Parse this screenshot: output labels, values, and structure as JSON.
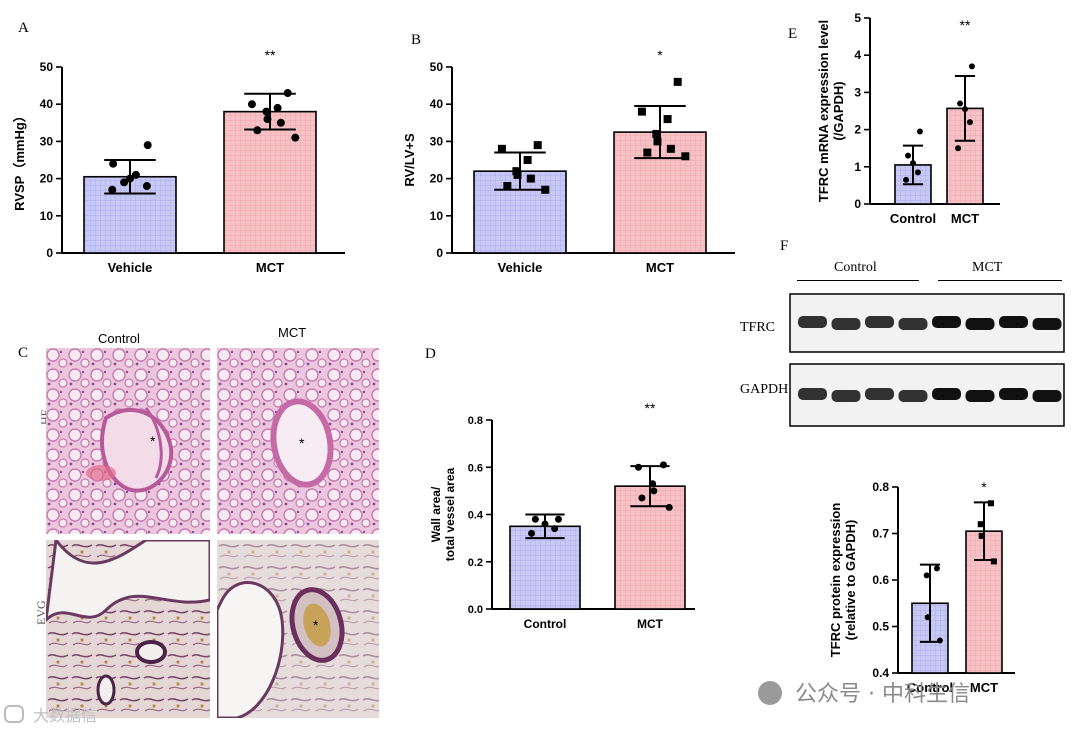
{
  "panels": {
    "A": "A",
    "B": "B",
    "C": "C",
    "D": "D",
    "E": "E",
    "F": "F"
  },
  "colors": {
    "control": "#c7c9f4",
    "mct": "#f6c2c6",
    "control_stroke": "#000000",
    "mct_stroke": "#000000"
  },
  "chart_data": [
    {
      "id": "A",
      "type": "bar",
      "categories": [
        "Vehicle",
        "MCT"
      ],
      "values": [
        20.5,
        38
      ],
      "errors": [
        4.5,
        4.8
      ],
      "points": [
        [
          29,
          24,
          21,
          20,
          19,
          18,
          17
        ],
        [
          43,
          40,
          39,
          38,
          36,
          35,
          33,
          31
        ]
      ],
      "significance": [
        "",
        "**"
      ],
      "ylabel": "RVSP（mmHg）",
      "ylim": [
        0,
        50
      ],
      "yticks": [
        0,
        10,
        20,
        30,
        40,
        50
      ],
      "title": "",
      "xlabel": ""
    },
    {
      "id": "B",
      "type": "bar",
      "categories": [
        "Vehicle",
        "MCT"
      ],
      "values": [
        22,
        32.5
      ],
      "errors": [
        5,
        7
      ],
      "points": [
        [
          29,
          28,
          25,
          22,
          21,
          20,
          18,
          17
        ],
        [
          46,
          38,
          36,
          32,
          30,
          28,
          27,
          26
        ]
      ],
      "significance": [
        "",
        "*"
      ],
      "ylabel": "RV/LV+S",
      "ylim": [
        0,
        50
      ],
      "yticks": [
        0,
        10,
        20,
        30,
        40,
        50
      ],
      "title": "",
      "xlabel": ""
    },
    {
      "id": "D",
      "type": "bar",
      "categories": [
        "Control",
        "MCT"
      ],
      "values": [
        0.35,
        0.52
      ],
      "errors": [
        0.05,
        0.085
      ],
      "points": [
        [
          0.38,
          0.38,
          0.36,
          0.34,
          0.32
        ],
        [
          0.61,
          0.6,
          0.53,
          0.5,
          0.47,
          0.43
        ]
      ],
      "significance": [
        "",
        "**"
      ],
      "ylabel": "Wall area/\ntotal vessel area",
      "ylim": [
        0,
        0.8
      ],
      "yticks": [
        "0.0",
        "0.2",
        "0.4",
        "0.6",
        "0.8"
      ],
      "title": "",
      "xlabel": ""
    },
    {
      "id": "E",
      "type": "bar",
      "categories": [
        "Control",
        "MCT"
      ],
      "values": [
        1.05,
        2.57
      ],
      "errors": [
        0.52,
        0.87
      ],
      "points": [
        [
          1.95,
          1.3,
          1.1,
          0.85,
          0.65
        ],
        [
          3.7,
          2.7,
          2.55,
          2.2,
          1.5
        ]
      ],
      "significance": [
        "",
        "**"
      ],
      "ylabel": "TFRC mRNA expression level\n(/GAPDH)",
      "ylim": [
        0,
        5
      ],
      "yticks": [
        0,
        1,
        2,
        3,
        4,
        5
      ],
      "title": "",
      "xlabel": ""
    },
    {
      "id": "F",
      "type": "bar",
      "categories": [
        "Control",
        "MCT"
      ],
      "values": [
        0.55,
        0.705
      ],
      "errors": [
        0.083,
        0.062
      ],
      "points": [
        [
          0.625,
          0.61,
          0.52,
          0.47
        ],
        [
          0.765,
          0.72,
          0.695,
          0.64
        ]
      ],
      "significance": [
        "",
        "*"
      ],
      "ylabel": "TFRC protein expression\n(relative to GAPDH)",
      "ylim": [
        0.4,
        0.8
      ],
      "yticks": [
        "0.4",
        "0.5",
        "0.6",
        "0.7",
        "0.8"
      ],
      "title": "",
      "xlabel": ""
    }
  ],
  "histology": {
    "col_labels": [
      "Control",
      "MCT"
    ],
    "row_labels": [
      "HE",
      "EVG"
    ],
    "vessel_marker": "*"
  },
  "blot": {
    "group_labels": [
      "Control",
      "MCT"
    ],
    "band_labels": [
      "TFRC",
      "GAPDH"
    ]
  },
  "watermarks": {
    "top_brand": "公众号 · 中科生信",
    "bottom_left": "大数据信"
  }
}
